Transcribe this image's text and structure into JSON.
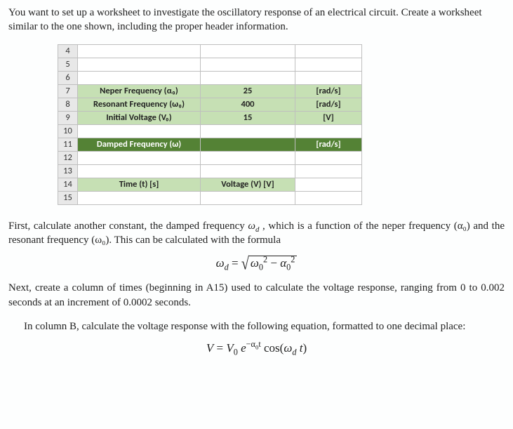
{
  "intro": "You want to set up a worksheet to investigate the oscillatory response of an electrical circuit. Create a worksheet similar to the one shown, including the proper header information.",
  "sheet": {
    "rowNumbers": [
      "4",
      "5",
      "6",
      "7",
      "8",
      "9",
      "10",
      "11",
      "12",
      "13",
      "14",
      "15"
    ],
    "r7": {
      "a": "Neper Frequency (α₀)",
      "b": "25",
      "c": "[rad/s]"
    },
    "r8": {
      "a": "Resonant Frequency (ω₀)",
      "b": "400",
      "c": "[rad/s]"
    },
    "r9": {
      "a": "Initial Voltage (V₀)",
      "b": "15",
      "c": "[V]"
    },
    "r11": {
      "a": "Damped Frequency (ω)",
      "b": "",
      "c": "[rad/s]"
    },
    "r14": {
      "a": "Time (t) [s]",
      "b": "Voltage (V) [V]",
      "c": ""
    }
  },
  "colors": {
    "lightGreen": "#c6e0b4",
    "darkGreen": "#548235",
    "rowHeader": "#e8e8e8",
    "gridBorder": "#bfbfbf"
  },
  "para1_pre": "First, calculate another constant, the damped frequency ",
  "para1_post": " , which is a function of the neper frequency (α₀) and the resonant frequency (ω₀). This can be calculated with the formula",
  "para2": "Next, create a column of times (beginning in A15) used to calculate the voltage response, ranging from 0 to 0.002 seconds at an increment of 0.0002 seconds.",
  "para3": "In column B, calculate the voltage response with the following equation, formatted to one decimal place:"
}
